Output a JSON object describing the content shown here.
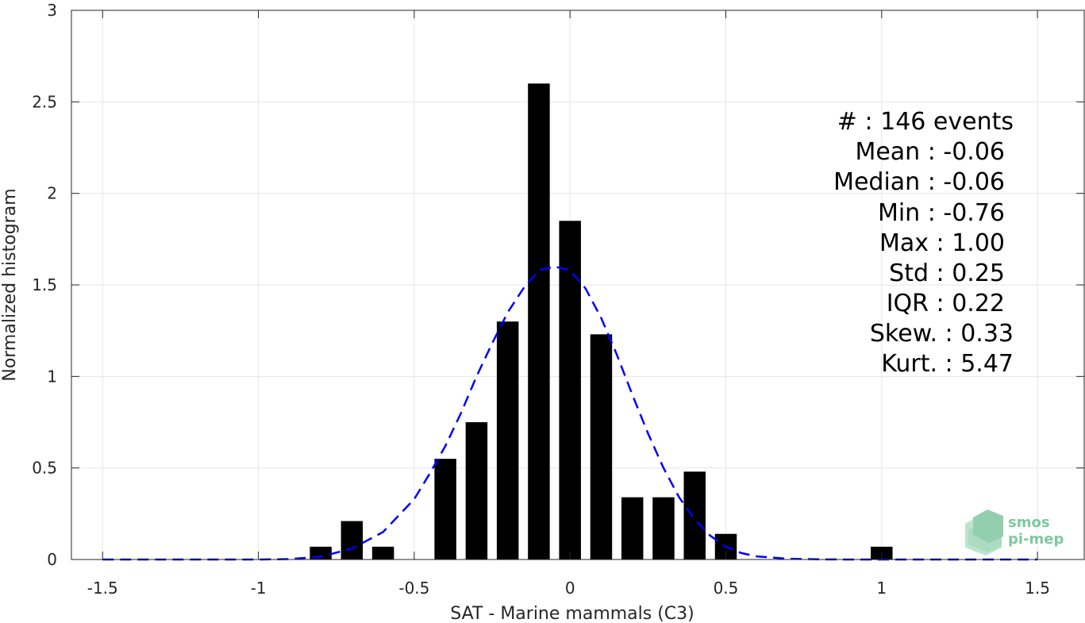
{
  "chart_data": {
    "type": "bar",
    "xlabel": "SAT - Marine mammals (C3)",
    "ylabel": "Normalized histogram",
    "xlim": [
      -1.6,
      1.65
    ],
    "ylim": [
      0,
      3
    ],
    "x_ticks": [
      -1.5,
      -1,
      -0.5,
      0,
      0.5,
      1,
      1.5
    ],
    "x_tick_labels": [
      "-1.5",
      "-1",
      "-0.5",
      "0",
      "0.5",
      "1",
      "1.5"
    ],
    "y_ticks": [
      0,
      0.5,
      1,
      1.5,
      2,
      2.5,
      3
    ],
    "y_tick_labels": [
      "0",
      "0.5",
      "1",
      "1.5",
      "2",
      "2.5",
      "3"
    ],
    "grid": true,
    "bar_width": 0.07,
    "bars": [
      {
        "x": -0.8,
        "y": 0.07
      },
      {
        "x": -0.7,
        "y": 0.21
      },
      {
        "x": -0.6,
        "y": 0.07
      },
      {
        "x": -0.4,
        "y": 0.55
      },
      {
        "x": -0.3,
        "y": 0.75
      },
      {
        "x": -0.2,
        "y": 1.3
      },
      {
        "x": -0.1,
        "y": 2.6
      },
      {
        "x": 0.0,
        "y": 1.85
      },
      {
        "x": 0.1,
        "y": 1.23
      },
      {
        "x": 0.2,
        "y": 0.34
      },
      {
        "x": 0.3,
        "y": 0.34
      },
      {
        "x": 0.4,
        "y": 0.48
      },
      {
        "x": 0.5,
        "y": 0.14
      },
      {
        "x": 1.0,
        "y": 0.07
      }
    ],
    "fit_curve": {
      "style": "dashed",
      "color": "#0000ff",
      "x": [
        -1.5,
        -1.4,
        -1.3,
        -1.2,
        -1.1,
        -1.0,
        -0.9,
        -0.8,
        -0.7,
        -0.6,
        -0.5,
        -0.45,
        -0.4,
        -0.35,
        -0.3,
        -0.25,
        -0.2,
        -0.15,
        -0.1,
        -0.05,
        0.0,
        0.05,
        0.1,
        0.15,
        0.2,
        0.25,
        0.3,
        0.35,
        0.4,
        0.45,
        0.5,
        0.55,
        0.6,
        0.7,
        0.8,
        0.9,
        1.0,
        1.1,
        1.2,
        1.3,
        1.4,
        1.5
      ],
      "y": [
        0,
        0,
        0,
        0,
        0,
        0,
        0.002,
        0.015,
        0.06,
        0.15,
        0.33,
        0.47,
        0.62,
        0.8,
        1.0,
        1.18,
        1.35,
        1.48,
        1.58,
        1.6,
        1.58,
        1.48,
        1.32,
        1.12,
        0.9,
        0.69,
        0.5,
        0.34,
        0.22,
        0.13,
        0.07,
        0.035,
        0.017,
        0.004,
        0.001,
        0,
        0,
        0,
        0,
        0,
        0,
        0
      ]
    },
    "bar_color": "#000000"
  },
  "stats": [
    {
      "label": "#  ",
      "value": "146 events"
    },
    {
      "label": "Mean",
      "value": "-0.06"
    },
    {
      "label": "Median",
      "value": "-0.06"
    },
    {
      "label": "Min",
      "value": "-0.76"
    },
    {
      "label": "Max",
      "value": "1.00"
    },
    {
      "label": "Std",
      "value": "0.25"
    },
    {
      "label": "IQR",
      "value": "0.22"
    },
    {
      "label": "Skew.",
      "value": "0.33"
    },
    {
      "label": "Kurt.",
      "value": "5.47"
    }
  ],
  "logo": {
    "line1": "smos",
    "line2": "pi-mep",
    "color": "#7fc8a0"
  }
}
